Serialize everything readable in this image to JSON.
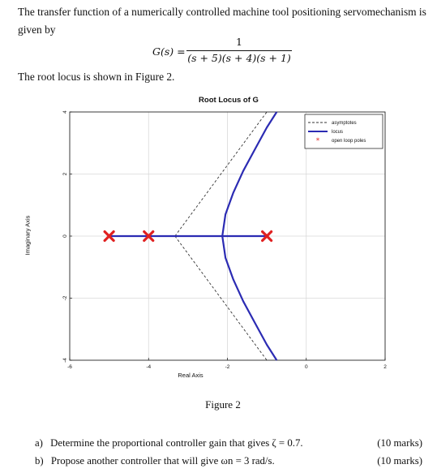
{
  "problem": {
    "intro": "The transfer function of a numerically controlled machine tool positioning servomechanism is given by",
    "equation_lhs": "G(s) =",
    "equation_numerator": "1",
    "equation_denominator": "(s + 5)(s + 4)(s + 1)",
    "root_locus_note": "The root locus is shown in Figure 2."
  },
  "figure": {
    "caption": "Figure 2"
  },
  "chart_data": {
    "type": "line",
    "title": "Root Locus of G",
    "xlabel": "Real Axis",
    "ylabel": "Imaginary Axis",
    "xlim": [
      -6,
      2
    ],
    "ylim": [
      -4,
      4
    ],
    "xticks": [
      "-6",
      "-4",
      "-2",
      "0",
      "2"
    ],
    "yticks": [
      "4",
      "2",
      "0",
      "-2",
      "-4"
    ],
    "grid": true,
    "legend": {
      "placement": "top-right",
      "entries": [
        "asymptotes",
        "locus",
        "open loop poles"
      ]
    },
    "open_loop_poles": [
      {
        "re": -5,
        "im": 0
      },
      {
        "re": -4,
        "im": 0
      },
      {
        "re": -1,
        "im": 0
      }
    ],
    "asymptote_centroid": -3.33,
    "asymptote_angles_deg": [
      60,
      180,
      300
    ],
    "breakaway_point": -2.13,
    "series": [
      {
        "name": "locus",
        "branches": [
          {
            "x": [
              -5,
              -2.13
            ],
            "y": [
              0,
              0
            ]
          },
          {
            "x": [
              -1,
              -2.13
            ],
            "y": [
              0,
              0
            ]
          },
          {
            "x": [
              -2.13,
              -2.05,
              -1.85,
              -1.6,
              -1.3,
              -1.0,
              -0.75
            ],
            "y": [
              0,
              0.7,
              1.4,
              2.1,
              2.8,
              3.5,
              4.0
            ]
          },
          {
            "x": [
              -2.13,
              -2.05,
              -1.85,
              -1.6,
              -1.3,
              -1.0,
              -0.75
            ],
            "y": [
              0,
              -0.7,
              -1.4,
              -2.1,
              -2.8,
              -3.5,
              -4.0
            ]
          }
        ]
      },
      {
        "name": "asymptotes",
        "branches": [
          {
            "x": [
              -4,
              -3.33
            ],
            "y": [
              0,
              0
            ]
          },
          {
            "x": [
              -3.33,
              -1.0
            ],
            "y": [
              0,
              4.0
            ]
          },
          {
            "x": [
              -3.33,
              -1.0
            ],
            "y": [
              0,
              -4.0
            ]
          }
        ]
      }
    ],
    "colors": {
      "locus": "#2b2bb3",
      "asymptotes": "#333333",
      "poles": "#e02020",
      "grid": "#d9d9d9"
    }
  },
  "questions": [
    {
      "label": "a)",
      "text": "Determine the proportional controller gain that gives ζ = 0.7.",
      "marks": "(10 marks)"
    },
    {
      "label": "b)",
      "text": "Propose another controller that will give ωn = 3 rad/s.",
      "marks": "(10 marks)"
    }
  ]
}
